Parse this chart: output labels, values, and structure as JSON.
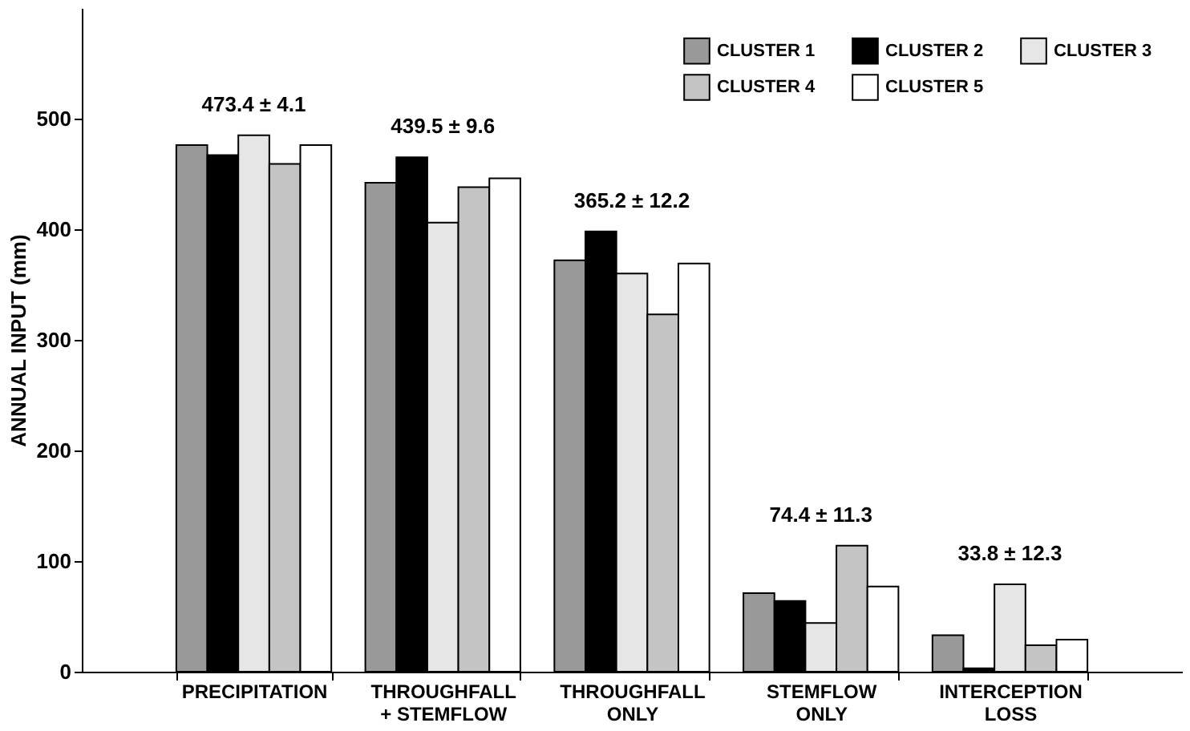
{
  "chart_data": {
    "type": "bar",
    "ylabel": "ANNUAL INPUT (mm)",
    "categories": [
      "PRECIPITATION",
      "THROUGHFALL\n+ STEMFLOW",
      "THROUGHFALL\nONLY",
      "STEMFLOW\nONLY",
      "INTERCEPTION\nLOSS"
    ],
    "series": [
      {
        "name": "CLUSTER 1",
        "color": "#999999",
        "values": [
          476,
          442,
          372,
          71,
          33
        ]
      },
      {
        "name": "CLUSTER 2",
        "color": "#000000",
        "values": [
          467,
          465,
          398,
          64,
          3
        ]
      },
      {
        "name": "CLUSTER 3",
        "color": "#e6e6e6",
        "values": [
          485,
          406,
          360,
          44,
          79
        ]
      },
      {
        "name": "CLUSTER 4",
        "color": "#c4c4c4",
        "values": [
          459,
          438,
          323,
          114,
          24
        ]
      },
      {
        "name": "CLUSTER 5",
        "color": "#ffffff",
        "values": [
          476,
          446,
          369,
          77,
          29
        ]
      }
    ],
    "annotations": [
      "473.4 ± 4.1",
      "439.5 ± 9.6",
      "365.2 ± 12.2",
      "74.4 ± 11.3",
      "33.8 ± 12.3"
    ],
    "ylim": [
      0,
      600
    ],
    "yticks": [
      0,
      100,
      200,
      300,
      400,
      500
    ],
    "grid": false,
    "legend": "top right"
  }
}
